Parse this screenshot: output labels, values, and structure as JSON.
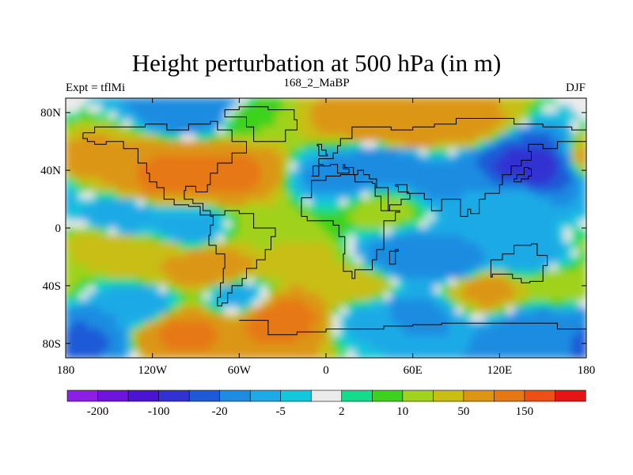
{
  "chart_data": {
    "type": "heatmap",
    "title": "Height perturbation at 500 hPa (in m)",
    "left_label": "Expt = tflMi",
    "center_label": "168_2_MaBP",
    "right_label": "DJF",
    "xlim": [
      -180,
      180
    ],
    "ylim": [
      -90,
      90
    ],
    "x_ticks": [
      {
        "value": -180,
        "label": "180"
      },
      {
        "value": -120,
        "label": "120W"
      },
      {
        "value": -60,
        "label": "60W"
      },
      {
        "value": 0,
        "label": "0"
      },
      {
        "value": 60,
        "label": "60E"
      },
      {
        "value": 120,
        "label": "120E"
      },
      {
        "value": 180,
        "label": "180"
      }
    ],
    "y_ticks": [
      {
        "value": 80,
        "label": "80N"
      },
      {
        "value": 40,
        "label": "40N"
      },
      {
        "value": 0,
        "label": "0"
      },
      {
        "value": -40,
        "label": "40S"
      },
      {
        "value": -80,
        "label": "80S"
      }
    ],
    "colorbar": {
      "colors": [
        "#8c1ee6",
        "#6e14dc",
        "#4b14d2",
        "#3232d2",
        "#1e5ad7",
        "#1e8ce1",
        "#1eaae6",
        "#14c8dc",
        "#ebebeb",
        "#14dc8c",
        "#3cd21e",
        "#a0d21e",
        "#c8be14",
        "#dc9614",
        "#e67814",
        "#ec5014",
        "#e61414"
      ],
      "tick_labels": [
        "-200",
        "-100",
        "-20",
        "-5",
        "2",
        "10",
        "50",
        "150"
      ]
    },
    "regions": [
      {
        "lon": -168,
        "lat": 48,
        "value": 25
      },
      {
        "lon": -150,
        "lat": -12,
        "value": 18
      },
      {
        "lon": -140,
        "lat": 5,
        "value": -18
      },
      {
        "lon": -90,
        "lat": 82,
        "value": -35
      },
      {
        "lon": -110,
        "lat": 35,
        "value": 55
      },
      {
        "lon": -70,
        "lat": 38,
        "value": 60
      },
      {
        "lon": -50,
        "lat": 75,
        "value": 5
      },
      {
        "lon": -95,
        "lat": 0,
        "value": -18
      },
      {
        "lon": -40,
        "lat": 0,
        "value": 8
      },
      {
        "lon": -120,
        "lat": -20,
        "value": 20
      },
      {
        "lon": -80,
        "lat": -28,
        "value": 35
      },
      {
        "lon": -20,
        "lat": -22,
        "value": 12
      },
      {
        "lon": -130,
        "lat": -55,
        "value": -20
      },
      {
        "lon": -60,
        "lat": -48,
        "value": -12
      },
      {
        "lon": -100,
        "lat": -72,
        "value": 55
      },
      {
        "lon": -30,
        "lat": -62,
        "value": 65
      },
      {
        "lon": -172,
        "lat": -78,
        "value": -55
      },
      {
        "lon": 20,
        "lat": 75,
        "value": 25
      },
      {
        "lon": 55,
        "lat": 70,
        "value": 45
      },
      {
        "lon": 95,
        "lat": 72,
        "value": 25
      },
      {
        "lon": 10,
        "lat": 35,
        "value": -25
      },
      {
        "lon": 40,
        "lat": 44,
        "value": -30
      },
      {
        "lon": 80,
        "lat": 32,
        "value": -22
      },
      {
        "lon": 140,
        "lat": 42,
        "value": -120
      },
      {
        "lon": 125,
        "lat": 18,
        "value": -12
      },
      {
        "lon": 40,
        "lat": 12,
        "value": 8
      },
      {
        "lon": 55,
        "lat": -20,
        "value": -30
      },
      {
        "lon": 90,
        "lat": -25,
        "value": -25
      },
      {
        "lon": 140,
        "lat": -20,
        "value": -15
      },
      {
        "lon": 20,
        "lat": -40,
        "value": 15
      },
      {
        "lon": 30,
        "lat": -65,
        "value": -12
      },
      {
        "lon": 60,
        "lat": -60,
        "value": -25
      },
      {
        "lon": 110,
        "lat": -42,
        "value": 25
      },
      {
        "lon": 150,
        "lat": -72,
        "value": -35
      },
      {
        "lon": 160,
        "lat": -40,
        "value": 10
      }
    ]
  }
}
